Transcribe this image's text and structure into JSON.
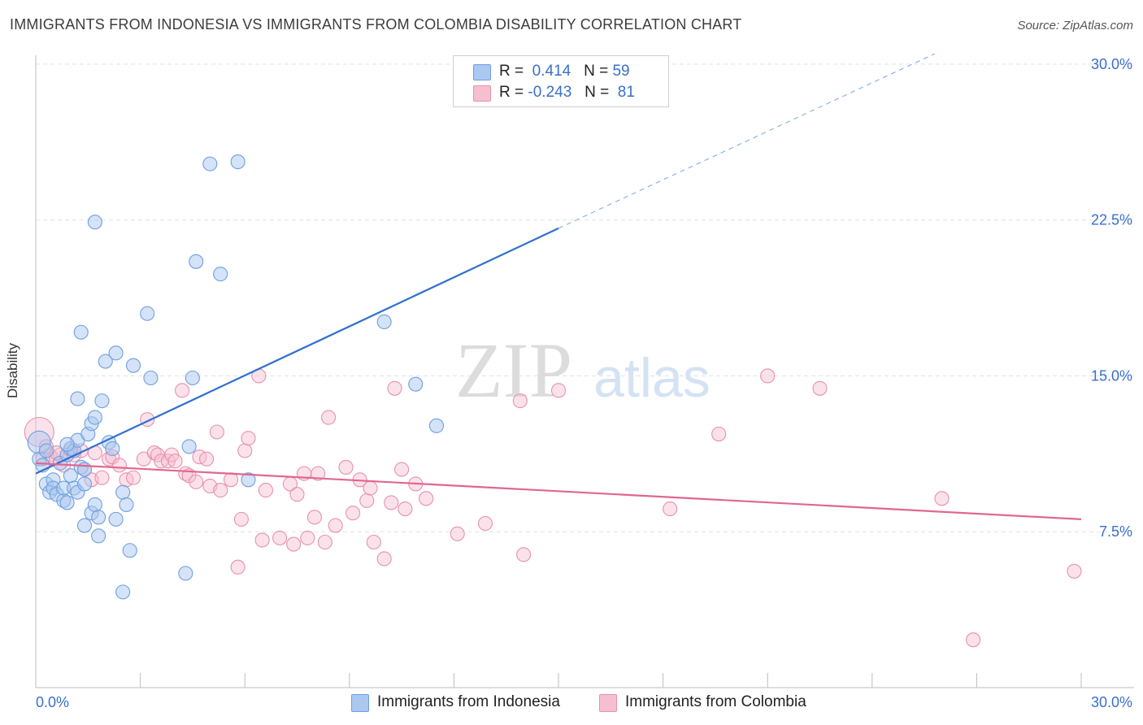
{
  "header": {
    "title": "IMMIGRANTS FROM INDONESIA VS IMMIGRANTS FROM COLOMBIA DISABILITY CORRELATION CHART",
    "source": "Source: ZipAtlas.com"
  },
  "watermark": {
    "zip": "ZIP",
    "atlas": "atlas"
  },
  "colors": {
    "blue_fill": "#aac8f0",
    "blue_stroke": "#6f9fe0",
    "blue_line": "#2f6fd0",
    "pink_fill": "#f6bfd0",
    "pink_stroke": "#e890ae",
    "pink_line": "#e06690",
    "axis_label": "#3a6fcc",
    "grid": "#e2e2e2"
  },
  "legend": {
    "indonesia": {
      "r_label": "R =",
      "r_value": " 0.414",
      "n_label": "N =",
      "n_value": "59"
    },
    "colombia": {
      "r_label": "R =",
      "r_value": "-0.243",
      "n_label": "N =",
      "n_value": "81"
    }
  },
  "bottom_legend": {
    "indonesia": "Immigrants from Indonesia",
    "colombia": "Immigrants from Colombia"
  },
  "chart_data": {
    "type": "scatter",
    "title": "IMMIGRANTS FROM INDONESIA VS IMMIGRANTS FROM COLOMBIA DISABILITY CORRELATION CHART",
    "xlabel": "",
    "ylabel": "Disability",
    "xlim": [
      0,
      30
    ],
    "ylim": [
      0,
      31.5
    ],
    "x_ticks": [
      "0.0%",
      "30.0%"
    ],
    "y_ticks": [
      {
        "value": 7.5,
        "label": "7.5%"
      },
      {
        "value": 15.0,
        "label": "15.0%"
      },
      {
        "value": 22.5,
        "label": "22.5%"
      },
      {
        "value": 30.0,
        "label": "30.0%"
      }
    ],
    "grid": true,
    "legend_position": "top-center",
    "series": [
      {
        "name": "Immigrants from Indonesia",
        "R": 0.414,
        "N": 59,
        "trend": {
          "x": [
            0.0,
            15.0
          ],
          "y": [
            10.3,
            22.1
          ],
          "dashed_to": [
            25.8,
            30.5
          ]
        },
        "points": [
          [
            0.1,
            11.8
          ],
          [
            0.1,
            11.0
          ],
          [
            0.2,
            10.7
          ],
          [
            0.3,
            9.8
          ],
          [
            0.4,
            9.4
          ],
          [
            0.5,
            10.0
          ],
          [
            0.5,
            9.6
          ],
          [
            0.6,
            9.3
          ],
          [
            0.7,
            10.8
          ],
          [
            0.8,
            9.0
          ],
          [
            0.8,
            9.6
          ],
          [
            0.9,
            11.2
          ],
          [
            0.9,
            8.9
          ],
          [
            1.0,
            10.2
          ],
          [
            1.0,
            11.5
          ],
          [
            1.1,
            11.4
          ],
          [
            1.1,
            9.6
          ],
          [
            1.2,
            11.9
          ],
          [
            1.2,
            13.9
          ],
          [
            1.2,
            9.4
          ],
          [
            1.3,
            10.6
          ],
          [
            1.3,
            17.1
          ],
          [
            1.4,
            7.8
          ],
          [
            1.4,
            9.8
          ],
          [
            1.5,
            12.2
          ],
          [
            1.6,
            12.7
          ],
          [
            1.6,
            8.4
          ],
          [
            1.7,
            13.0
          ],
          [
            1.7,
            8.8
          ],
          [
            1.7,
            22.4
          ],
          [
            1.8,
            7.3
          ],
          [
            1.8,
            8.2
          ],
          [
            1.9,
            13.8
          ],
          [
            2.0,
            15.7
          ],
          [
            2.1,
            11.8
          ],
          [
            2.2,
            11.5
          ],
          [
            2.3,
            16.1
          ],
          [
            2.3,
            8.1
          ],
          [
            2.5,
            9.4
          ],
          [
            2.6,
            8.8
          ],
          [
            2.7,
            6.6
          ],
          [
            2.8,
            15.5
          ],
          [
            3.2,
            18.0
          ],
          [
            3.3,
            14.9
          ],
          [
            4.3,
            5.5
          ],
          [
            4.4,
            11.6
          ],
          [
            4.5,
            14.9
          ],
          [
            4.6,
            20.5
          ],
          [
            5.0,
            25.2
          ],
          [
            5.3,
            19.9
          ],
          [
            5.8,
            25.3
          ],
          [
            6.1,
            10.0
          ],
          [
            2.5,
            4.6
          ],
          [
            10.0,
            17.6
          ],
          [
            10.9,
            14.6
          ],
          [
            11.5,
            12.6
          ],
          [
            0.3,
            11.4
          ],
          [
            0.9,
            11.7
          ],
          [
            1.4,
            10.5
          ]
        ]
      },
      {
        "name": "Immigrants from Colombia",
        "R": -0.243,
        "N": 81,
        "trend": {
          "x": [
            0.0,
            30.0
          ],
          "y": [
            10.8,
            8.1
          ]
        },
        "points": [
          [
            0.1,
            12.3
          ],
          [
            0.3,
            11.6
          ],
          [
            0.4,
            11.2
          ],
          [
            0.5,
            11.0
          ],
          [
            0.7,
            11.2
          ],
          [
            0.8,
            10.7
          ],
          [
            1.0,
            11.4
          ],
          [
            1.1,
            11.2
          ],
          [
            1.3,
            11.4
          ],
          [
            1.4,
            10.5
          ],
          [
            1.6,
            10.0
          ],
          [
            1.7,
            11.3
          ],
          [
            1.9,
            10.1
          ],
          [
            2.1,
            11.0
          ],
          [
            2.2,
            11.1
          ],
          [
            2.4,
            10.7
          ],
          [
            2.6,
            10.0
          ],
          [
            2.8,
            10.1
          ],
          [
            3.1,
            11.0
          ],
          [
            3.2,
            12.9
          ],
          [
            3.4,
            11.3
          ],
          [
            3.5,
            11.2
          ],
          [
            3.6,
            10.9
          ],
          [
            3.8,
            10.9
          ],
          [
            3.9,
            11.2
          ],
          [
            4.0,
            10.9
          ],
          [
            4.2,
            14.3
          ],
          [
            4.3,
            10.3
          ],
          [
            4.4,
            10.2
          ],
          [
            4.6,
            9.9
          ],
          [
            4.7,
            11.1
          ],
          [
            4.9,
            11.0
          ],
          [
            5.0,
            9.7
          ],
          [
            5.2,
            12.3
          ],
          [
            5.3,
            9.5
          ],
          [
            5.6,
            10.0
          ],
          [
            5.8,
            5.8
          ],
          [
            5.9,
            8.1
          ],
          [
            6.0,
            11.4
          ],
          [
            6.1,
            12.0
          ],
          [
            6.4,
            15.0
          ],
          [
            6.5,
            7.1
          ],
          [
            6.6,
            9.5
          ],
          [
            7.0,
            7.2
          ],
          [
            7.3,
            9.8
          ],
          [
            7.4,
            6.9
          ],
          [
            7.5,
            9.3
          ],
          [
            7.7,
            10.3
          ],
          [
            7.8,
            7.2
          ],
          [
            8.0,
            8.2
          ],
          [
            8.1,
            10.3
          ],
          [
            8.3,
            7.0
          ],
          [
            8.4,
            13.0
          ],
          [
            8.6,
            7.8
          ],
          [
            8.9,
            10.6
          ],
          [
            9.1,
            8.4
          ],
          [
            9.3,
            10.0
          ],
          [
            9.5,
            9.0
          ],
          [
            9.6,
            9.6
          ],
          [
            9.7,
            7.0
          ],
          [
            10.0,
            6.2
          ],
          [
            10.2,
            8.9
          ],
          [
            10.3,
            14.4
          ],
          [
            10.5,
            10.5
          ],
          [
            10.6,
            8.6
          ],
          [
            10.9,
            9.8
          ],
          [
            11.2,
            9.1
          ],
          [
            12.1,
            7.4
          ],
          [
            12.9,
            7.9
          ],
          [
            13.9,
            13.8
          ],
          [
            14.0,
            6.4
          ],
          [
            15.0,
            14.3
          ],
          [
            18.2,
            8.6
          ],
          [
            19.6,
            12.2
          ],
          [
            21.0,
            15.0
          ],
          [
            22.5,
            14.4
          ],
          [
            26.0,
            9.1
          ],
          [
            26.9,
            2.3
          ],
          [
            29.8,
            5.6
          ],
          [
            0.2,
            11.0
          ],
          [
            0.6,
            11.3
          ]
        ]
      }
    ]
  }
}
